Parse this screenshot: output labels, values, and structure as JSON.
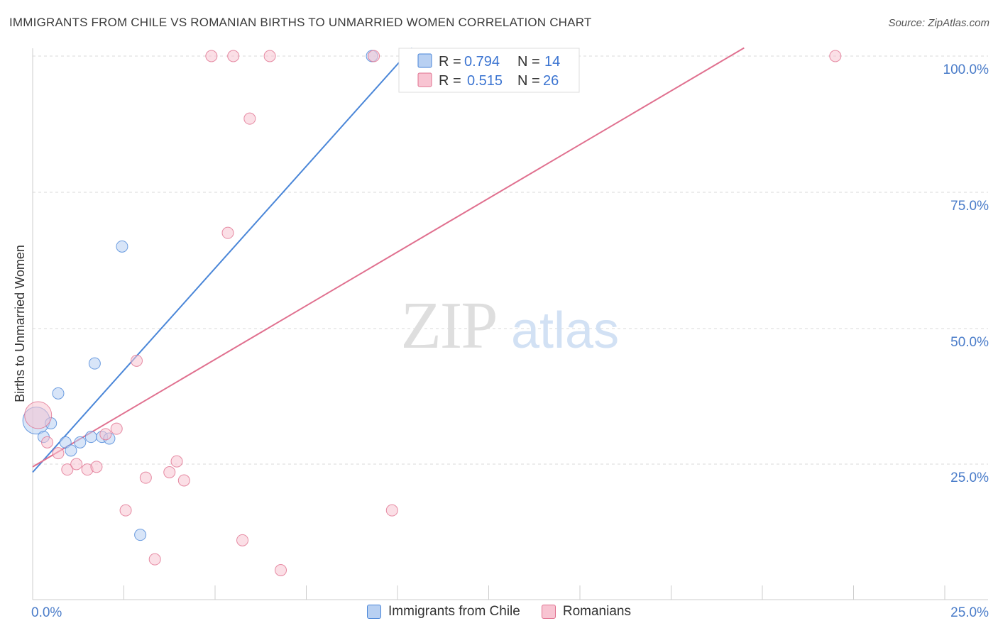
{
  "header": {
    "title": "IMMIGRANTS FROM CHILE VS ROMANIAN BIRTHS TO UNMARRIED WOMEN CORRELATION CHART",
    "source": "Source: ZipAtlas.com"
  },
  "watermark": {
    "zip": "ZIP",
    "atlas": "atlas"
  },
  "legend_box": {
    "rows": [
      {
        "r_label": "R = ",
        "r_value": "0.794",
        "n_label": "N = ",
        "n_value": "14"
      },
      {
        "r_label": "R = ",
        "r_value": "0.515",
        "n_label": "N = ",
        "n_value": "26"
      }
    ]
  },
  "chart_data": {
    "type": "scatter",
    "title": "IMMIGRANTS FROM CHILE VS ROMANIAN BIRTHS TO UNMARRIED WOMEN CORRELATION CHART",
    "xlabel": "",
    "ylabel": "Births to Unmarried Women",
    "xlim": [
      0,
      25
    ],
    "ylim": [
      0,
      100
    ],
    "x_tick_labels": [
      {
        "value": 0,
        "label": "0.0%"
      },
      {
        "value": 25,
        "label": "25.0%"
      }
    ],
    "y_tick_labels": [
      {
        "value": 25,
        "label": "25.0%"
      },
      {
        "value": 50,
        "label": "50.0%"
      },
      {
        "value": 75,
        "label": "75.0%"
      },
      {
        "value": 100,
        "label": "100.0%"
      }
    ],
    "series": [
      {
        "name": "Immigrants from Chile",
        "color": "#4a86d8",
        "fill": "#b8d0f2",
        "R": 0.794,
        "N": 14,
        "trend": {
          "x0": 0.0,
          "y0": 23.5,
          "x1": 10.4,
          "y1": 101.5
        },
        "points": [
          {
            "x": 0.1,
            "y": 33.0,
            "size": "large"
          },
          {
            "x": 0.3,
            "y": 30.0
          },
          {
            "x": 0.5,
            "y": 32.5
          },
          {
            "x": 0.7,
            "y": 38.0
          },
          {
            "x": 0.9,
            "y": 29.0
          },
          {
            "x": 1.05,
            "y": 27.5
          },
          {
            "x": 1.3,
            "y": 29.0
          },
          {
            "x": 1.6,
            "y": 30.0
          },
          {
            "x": 1.9,
            "y": 30.0
          },
          {
            "x": 2.1,
            "y": 29.7
          },
          {
            "x": 1.7,
            "y": 43.5
          },
          {
            "x": 2.45,
            "y": 65.0
          },
          {
            "x": 2.95,
            "y": 12.0
          },
          {
            "x": 9.3,
            "y": 101.5
          }
        ]
      },
      {
        "name": "Romanians",
        "color": "#e0708f",
        "fill": "#f8c4d2",
        "R": 0.515,
        "N": 26,
        "trend": {
          "x0": 0.0,
          "y0": 24.5,
          "x1": 19.5,
          "y1": 101.5
        },
        "points": [
          {
            "x": 0.15,
            "y": 34.0,
            "size": "large"
          },
          {
            "x": 0.4,
            "y": 29.0
          },
          {
            "x": 0.7,
            "y": 27.0
          },
          {
            "x": 0.95,
            "y": 24.0
          },
          {
            "x": 1.2,
            "y": 25.0
          },
          {
            "x": 1.5,
            "y": 24.0
          },
          {
            "x": 1.75,
            "y": 24.5
          },
          {
            "x": 2.0,
            "y": 30.5
          },
          {
            "x": 2.3,
            "y": 31.5
          },
          {
            "x": 2.55,
            "y": 16.5
          },
          {
            "x": 2.85,
            "y": 44.0
          },
          {
            "x": 3.1,
            "y": 22.5
          },
          {
            "x": 3.35,
            "y": 7.5
          },
          {
            "x": 3.75,
            "y": 23.5
          },
          {
            "x": 3.95,
            "y": 25.5
          },
          {
            "x": 4.15,
            "y": 22.0
          },
          {
            "x": 4.9,
            "y": 101.5
          },
          {
            "x": 5.35,
            "y": 67.5
          },
          {
            "x": 5.5,
            "y": 101.5
          },
          {
            "x": 5.75,
            "y": 11.0
          },
          {
            "x": 5.95,
            "y": 88.5
          },
          {
            "x": 6.5,
            "y": 101.5
          },
          {
            "x": 6.8,
            "y": 5.5
          },
          {
            "x": 9.35,
            "y": 101.5
          },
          {
            "x": 9.85,
            "y": 16.5
          },
          {
            "x": 22.0,
            "y": 101.5
          }
        ]
      }
    ],
    "legend_position": "top-center"
  }
}
